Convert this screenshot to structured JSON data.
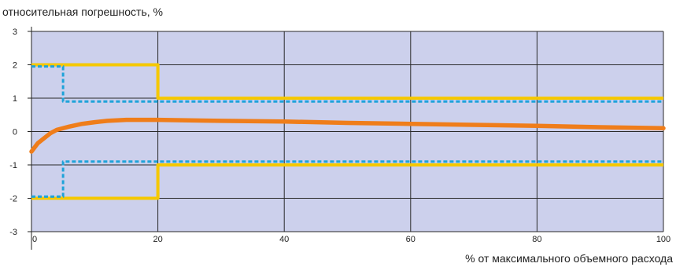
{
  "chart_data": {
    "type": "line",
    "title": "",
    "ylabel": "относительная погрешность, %",
    "xlabel": "% от максимального объемного расхода",
    "xlim": [
      0,
      100
    ],
    "ylim": [
      -3,
      3
    ],
    "xticks": [
      0,
      20,
      40,
      60,
      80,
      100
    ],
    "yticks": [
      3,
      2,
      1,
      0,
      -1,
      -2,
      -3
    ],
    "xtick_labels": [
      "0",
      "20",
      "40",
      "60",
      "80",
      "100"
    ],
    "ytick_labels": [
      "3",
      "2",
      "1",
      "0",
      "-1",
      "-2",
      "-3"
    ],
    "grid": true,
    "plot_background": "#ccd0ec",
    "series": [
      {
        "style": "solid",
        "color": "#f5c800",
        "segments": [
          {
            "x": [
              0,
              20,
              20,
              100
            ],
            "y": [
              2,
              2,
              1,
              1
            ]
          },
          {
            "x": [
              0,
              20,
              20,
              100
            ],
            "y": [
              -2,
              -2,
              -1,
              -1
            ]
          }
        ]
      },
      {
        "style": "dashed",
        "color": "#1fa3d9",
        "segments": [
          {
            "x": [
              0,
              5,
              5,
              100
            ],
            "y": [
              1.95,
              1.95,
              0.9,
              0.9
            ]
          },
          {
            "x": [
              0,
              5,
              5,
              100
            ],
            "y": [
              -1.95,
              -1.95,
              -0.9,
              -0.9
            ]
          }
        ]
      },
      {
        "style": "solid",
        "color": "#ef7d1a",
        "x": [
          0,
          1,
          2,
          3,
          4,
          5,
          6,
          8,
          10,
          12,
          15,
          20,
          30,
          40,
          50,
          60,
          70,
          80,
          90,
          100
        ],
        "y": [
          -0.6,
          -0.35,
          -0.2,
          -0.05,
          0.05,
          0.1,
          0.15,
          0.23,
          0.28,
          0.32,
          0.35,
          0.35,
          0.32,
          0.3,
          0.26,
          0.23,
          0.2,
          0.17,
          0.13,
          0.1
        ]
      }
    ]
  }
}
